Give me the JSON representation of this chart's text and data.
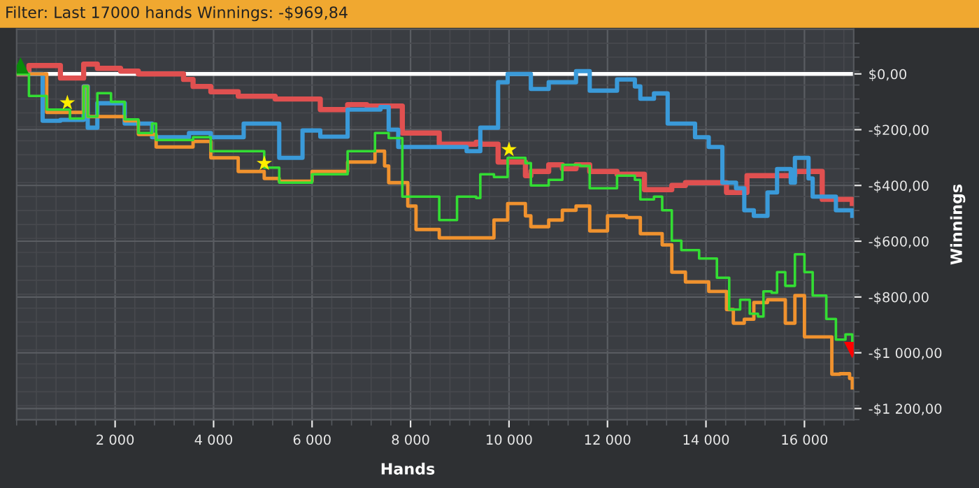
{
  "chart_data": {
    "type": "step",
    "title": "Filter: Last 17000 hands Winnings: -$969,84",
    "xlabel": "Hands",
    "ylabel": "Winnings",
    "xlim": [
      0,
      17000
    ],
    "ylim": [
      -1240,
      160
    ],
    "xticks": [
      {
        "value": 2000,
        "label": "2 000"
      },
      {
        "value": 4000,
        "label": "4 000"
      },
      {
        "value": 6000,
        "label": "6 000"
      },
      {
        "value": 8000,
        "label": "8 000"
      },
      {
        "value": 10000,
        "label": "10 000"
      },
      {
        "value": 12000,
        "label": "12 000"
      },
      {
        "value": 14000,
        "label": "14 000"
      },
      {
        "value": 16000,
        "label": "16 000"
      }
    ],
    "yticks": [
      {
        "value": 0,
        "label": "$0,00"
      },
      {
        "value": -200,
        "label": "-$200,00"
      },
      {
        "value": -400,
        "label": "-$400,00"
      },
      {
        "value": -600,
        "label": "-$600,00"
      },
      {
        "value": -800,
        "label": "-$800,00"
      },
      {
        "value": -1000,
        "label": "-$1 000,00"
      },
      {
        "value": -1200,
        "label": "-$1 200,00"
      }
    ],
    "grid": true,
    "legend": false,
    "marker": "none",
    "line_style": "solid",
    "ref_lines": [
      {
        "axis": "y",
        "value": 0,
        "label": null,
        "color": "#ffffff"
      }
    ],
    "series": [
      {
        "color": "#e05050",
        "x": [
          0,
          250,
          611,
          889,
          1361,
          1639,
          2111,
          2472,
          3389,
          3583,
          3944,
          4500,
          5250,
          6167,
          6722,
          7111,
          7833,
          8583,
          9333,
          9417,
          9778,
          10333,
          10444,
          10806,
          11083,
          11361,
          11639,
          12194,
          12750,
          13306,
          13583,
          14417,
          14833,
          15806,
          16361,
          16972
        ],
        "values": [
          0,
          30,
          30,
          -15,
          35,
          20,
          10,
          0,
          -20,
          -45,
          -64,
          -80,
          -90,
          -128,
          -110,
          -115,
          -212,
          -252,
          -245,
          -252,
          -316,
          -365,
          -350,
          -326,
          -340,
          -326,
          -350,
          -360,
          -415,
          -400,
          -390,
          -425,
          -365,
          -350,
          -450,
          -465
        ]
      },
      {
        "color": "#3a9ad9",
        "x": [
          0,
          528,
          889,
          1361,
          1444,
          1639,
          2194,
          2750,
          3500,
          3944,
          4611,
          5333,
          5806,
          6167,
          6722,
          7389,
          7556,
          7750,
          8583,
          9139,
          9417,
          9778,
          9972,
          10333,
          10444,
          10806,
          11361,
          11639,
          12194,
          12556,
          12667,
          12944,
          13222,
          13778,
          14056,
          14333,
          14611,
          14778,
          14972,
          15250,
          15444,
          15722,
          15806,
          16083,
          16167,
          16639,
          16972
        ],
        "values": [
          0,
          -168,
          -165,
          -45,
          -193,
          -105,
          -178,
          -227,
          -212,
          -227,
          -178,
          -301,
          -203,
          -225,
          -128,
          -119,
          -200,
          -262,
          -262,
          -277,
          -193,
          -30,
          0,
          0,
          -54,
          -30,
          10,
          -60,
          -20,
          -45,
          -89,
          -70,
          -178,
          -227,
          -262,
          -390,
          -410,
          -489,
          -509,
          -425,
          -341,
          -390,
          -301,
          -375,
          -440,
          -489,
          -509
        ]
      },
      {
        "color": "#f0922e",
        "x": [
          0,
          611,
          1361,
          1444,
          2194,
          2472,
          2833,
          3583,
          3944,
          4500,
          5028,
          5333,
          6000,
          6722,
          7278,
          7472,
          7556,
          7944,
          8111,
          8583,
          9333,
          9417,
          9694,
          9972,
          10333,
          10444,
          10806,
          11083,
          11361,
          11639,
          12000,
          12389,
          12667,
          13111,
          13306,
          13583,
          14056,
          14417,
          14556,
          14778,
          14972,
          15250,
          15611,
          15806,
          16000,
          16278,
          16556,
          16722,
          16917,
          16972
        ],
        "values": [
          0,
          -138,
          -45,
          -153,
          -168,
          -217,
          -262,
          -242,
          -301,
          -350,
          -375,
          -385,
          -350,
          -316,
          -277,
          -330,
          -390,
          -474,
          -558,
          -588,
          -588,
          -588,
          -524,
          -465,
          -509,
          -548,
          -524,
          -489,
          -474,
          -563,
          -509,
          -515,
          -573,
          -613,
          -711,
          -746,
          -780,
          -845,
          -894,
          -880,
          -820,
          -810,
          -894,
          -795,
          -943,
          -943,
          -1077,
          -1075,
          -1092,
          -1126
        ]
      },
      {
        "color": "#33dd33",
        "x": [
          0,
          250,
          611,
          1000,
          1083,
          1361,
          1444,
          1639,
          1917,
          2194,
          2472,
          2750,
          2833,
          3583,
          3944,
          4500,
          5028,
          5333,
          6000,
          6722,
          7111,
          7278,
          7556,
          7833,
          8583,
          8944,
          9333,
          9417,
          9694,
          9972,
          10333,
          10444,
          10806,
          11083,
          11444,
          11639,
          12194,
          12556,
          12667,
          12944,
          13111,
          13306,
          13500,
          13861,
          14222,
          14472,
          14694,
          14889,
          15056,
          15167,
          15333,
          15444,
          15611,
          15806,
          16000,
          16167,
          16444,
          16639,
          16833,
          16972
        ],
        "values": [
          0,
          -79,
          -128,
          -128,
          -160,
          -45,
          -153,
          -69,
          -100,
          -163,
          -212,
          -178,
          -237,
          -227,
          -277,
          -277,
          -336,
          -390,
          -360,
          -277,
          -277,
          -212,
          -230,
          -440,
          -524,
          -440,
          -445,
          -360,
          -370,
          -301,
          -320,
          -400,
          -380,
          -326,
          -330,
          -410,
          -365,
          -380,
          -450,
          -440,
          -489,
          -598,
          -632,
          -662,
          -731,
          -845,
          -810,
          -860,
          -870,
          -780,
          -785,
          -711,
          -760,
          -647,
          -711,
          -795,
          -879,
          -953,
          -934,
          -968
        ]
      },
      {
        "type": "scatter",
        "marker": "star",
        "color": "#ffee00",
        "x": [
          1030,
          5030,
          10000
        ],
        "values": [
          -104,
          -321,
          -272
        ]
      },
      {
        "type": "scatter",
        "marker": "triangle",
        "color": "#0a8a0a",
        "x": [
          80
        ],
        "values": [
          30
        ]
      },
      {
        "type": "scatter",
        "marker": "triangle_down",
        "color": "#ff0000",
        "x": [
          16970
        ],
        "values": [
          -990
        ]
      }
    ]
  }
}
